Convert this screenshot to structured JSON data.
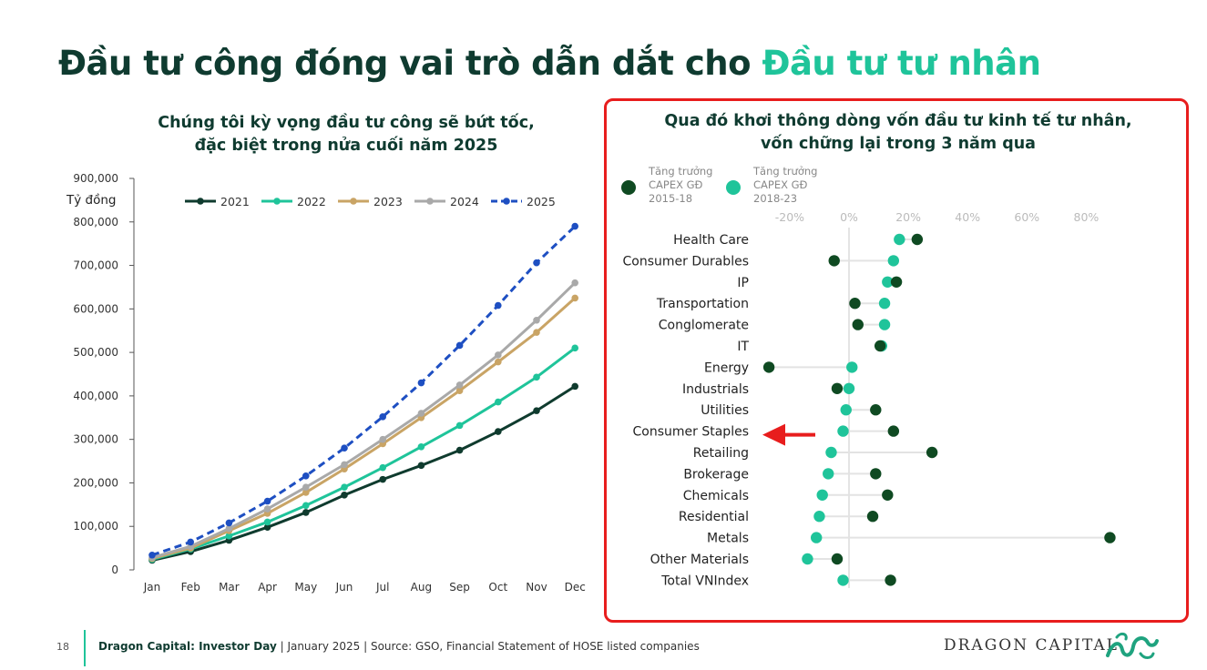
{
  "slide": {
    "title_part1": "Đầu tư công đóng vai trò dẫn dắt cho",
    "title_part2": "Đầu tư tư nhân",
    "left_subtitle_line1": "Chúng tôi kỳ vọng đầu tư công sẽ bứt tốc,",
    "left_subtitle_line2": "đặc biệt trong nửa cuối năm 2025",
    "right_subtitle_line1": "Qua đó khơi thông dòng vốn đầu tư kinh tế tư nhân,",
    "right_subtitle_line2": "vốn chững lại trong 3 năm qua"
  },
  "footer": {
    "page_number": "18",
    "brand_bold": "Dragon Capital: Investor Day",
    "source_text": " | January 2025 | Source: GSO, Financial Statement of HOSE listed companies",
    "brand_name": "DRAGON CAPITAL",
    "logo_icon": "dragon-logo-icon"
  },
  "chart_data": [
    {
      "type": "line",
      "ylabel": "Tỷ đồng",
      "xlabel": "",
      "categories": [
        "Jan",
        "Feb",
        "Mar",
        "Apr",
        "May",
        "Jun",
        "Jul",
        "Aug",
        "Sep",
        "Oct",
        "Nov",
        "Dec"
      ],
      "ylim": [
        0,
        900000
      ],
      "yticks": [
        0,
        100000,
        200000,
        300000,
        400000,
        500000,
        600000,
        700000,
        800000,
        900000
      ],
      "ytick_labels": [
        "0",
        "100,000",
        "200,000",
        "300,000",
        "400,000",
        "500,000",
        "600,000",
        "700,000",
        "800,000",
        "900,000"
      ],
      "legend_position": "top",
      "grid": false,
      "series": [
        {
          "name": "2021",
          "color": "#0f3b2e",
          "dashed": false,
          "values": [
            22000,
            42000,
            68000,
            98000,
            132000,
            172000,
            208000,
            240000,
            275000,
            318000,
            366000,
            422000
          ]
        },
        {
          "name": "2022",
          "color": "#1fc49a",
          "dashed": false,
          "values": [
            24000,
            48000,
            78000,
            110000,
            148000,
            190000,
            235000,
            283000,
            332000,
            386000,
            443000,
            510000
          ]
        },
        {
          "name": "2023",
          "color": "#c9a465",
          "dashed": false,
          "values": [
            26000,
            50000,
            90000,
            130000,
            178000,
            232000,
            290000,
            350000,
            412000,
            478000,
            546000,
            625000
          ]
        },
        {
          "name": "2024",
          "color": "#a9a9a9",
          "dashed": false,
          "values": [
            28000,
            54000,
            95000,
            140000,
            190000,
            242000,
            300000,
            360000,
            425000,
            494000,
            574000,
            660000
          ]
        },
        {
          "name": "2025",
          "color": "#1e4fc2",
          "dashed": true,
          "values": [
            34000,
            64000,
            108000,
            158000,
            216000,
            280000,
            352000,
            430000,
            516000,
            608000,
            706000,
            790000
          ]
        }
      ]
    },
    {
      "type": "scatter",
      "title": "",
      "xlim": [
        -20,
        80
      ],
      "xticks": [
        -20,
        0,
        20,
        40,
        60,
        80
      ],
      "xtick_labels": [
        "-20%",
        "0%",
        "20%",
        "40%",
        "60%",
        "80%"
      ],
      "legend_position": "top-left",
      "series": [
        {
          "name": "Tăng trưởng CAPEX GĐ 2015-18",
          "name_lines": [
            "Tăng trưởng",
            "CAPEX GĐ",
            "2015-18"
          ],
          "color": "#0f4a22"
        },
        {
          "name": "Tăng trưởng CAPEX GĐ 2018-23",
          "name_lines": [
            "Tăng trưởng",
            "CAPEX GĐ",
            "2018-23"
          ],
          "color": "#1fc49a"
        }
      ],
      "categories": [
        "Health Care",
        "Consumer Durables",
        "IP",
        "Transportation",
        "Conglomerate",
        "IT",
        "Energy",
        "Industrials",
        "Utilities",
        "Consumer Staples",
        "Retailing",
        "Brokerage",
        "Chemicals",
        "Residential",
        "Metals",
        "Other Materials",
        "Total VNIndex"
      ],
      "values_2015_18": [
        23,
        -5,
        16,
        2,
        3,
        10.5,
        -27,
        -4,
        9,
        15,
        28,
        9,
        13,
        8,
        88,
        -4,
        14
      ],
      "values_2018_23": [
        17,
        15,
        13,
        12,
        12,
        11,
        1,
        0,
        -1,
        -2,
        -6,
        -7,
        -9,
        -10,
        -11,
        -14,
        -2
      ],
      "highlight": "Consumer Staples",
      "highlight_color": "#e81d1d"
    }
  ]
}
